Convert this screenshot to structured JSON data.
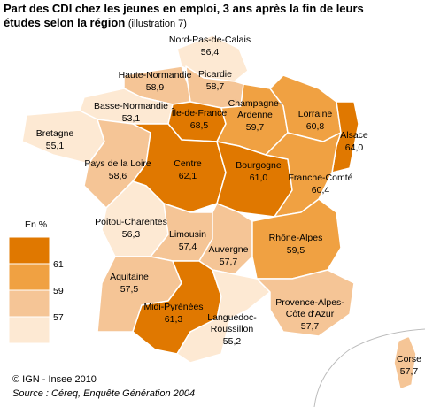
{
  "title": {
    "main": "Part des CDI chez les jeunes en emploi, 3 ans après la fin de leurs",
    "sub": "études selon la région",
    "note": "(illustration 7)"
  },
  "legend": {
    "title": "En %",
    "thresholds": [
      61,
      59,
      57
    ],
    "colors": [
      "#e07800",
      "#f0a142",
      "#f5c596",
      "#fde9d3"
    ]
  },
  "regions": [
    {
      "name": "Nord-Pas-de-Calais",
      "value": 56.4,
      "value_label": "56,4"
    },
    {
      "name": "Picardie",
      "value": 58.7,
      "value_label": "58,7"
    },
    {
      "name": "Haute-Normandie",
      "value": 58.9,
      "value_label": "58,9"
    },
    {
      "name": "Basse-Normandie",
      "value": 53.1,
      "value_label": "53,1"
    },
    {
      "name": "Bretagne",
      "value": 55.1,
      "value_label": "55,1"
    },
    {
      "name": "Pays de la Loire",
      "value": 58.6,
      "value_label": "58,6"
    },
    {
      "name": "Île-de-France",
      "value": 68.5,
      "value_label": "68,5"
    },
    {
      "name": [
        "Champagne-",
        "Ardenne"
      ],
      "value": 59.7,
      "value_label": "59,7"
    },
    {
      "name": "Lorraine",
      "value": 60.8,
      "value_label": "60,8"
    },
    {
      "name": "Alsace",
      "value": 64.0,
      "value_label": "64,0"
    },
    {
      "name": "Centre",
      "value": 62.1,
      "value_label": "62,1"
    },
    {
      "name": "Bourgogne",
      "value": 61.0,
      "value_label": "61,0"
    },
    {
      "name": "Franche-Comté",
      "value": 60.4,
      "value_label": "60,4"
    },
    {
      "name": "Poitou-Charentes",
      "value": 56.3,
      "value_label": "56,3"
    },
    {
      "name": "Limousin",
      "value": 57.4,
      "value_label": "57,4"
    },
    {
      "name": "Auvergne",
      "value": 57.7,
      "value_label": "57,7"
    },
    {
      "name": "Rhône-Alpes",
      "value": 59.5,
      "value_label": "59,5"
    },
    {
      "name": "Aquitaine",
      "value": 57.5,
      "value_label": "57,5"
    },
    {
      "name": "Midi-Pyrénées",
      "value": 61.3,
      "value_label": "61,3"
    },
    {
      "name": [
        "Languedoc-",
        "Roussillon"
      ],
      "value": 55.2,
      "value_label": "55,2"
    },
    {
      "name": [
        "Provence-Alpes-",
        "Côte d'Azur"
      ],
      "value": 57.7,
      "value_label": "57,7"
    },
    {
      "name": "Corse",
      "value": 57.7,
      "value_label": "57,7"
    }
  ],
  "footer": {
    "credit": "© IGN - Insee 2010",
    "source": "Source : Céreq, Enquête Génération 2004"
  }
}
